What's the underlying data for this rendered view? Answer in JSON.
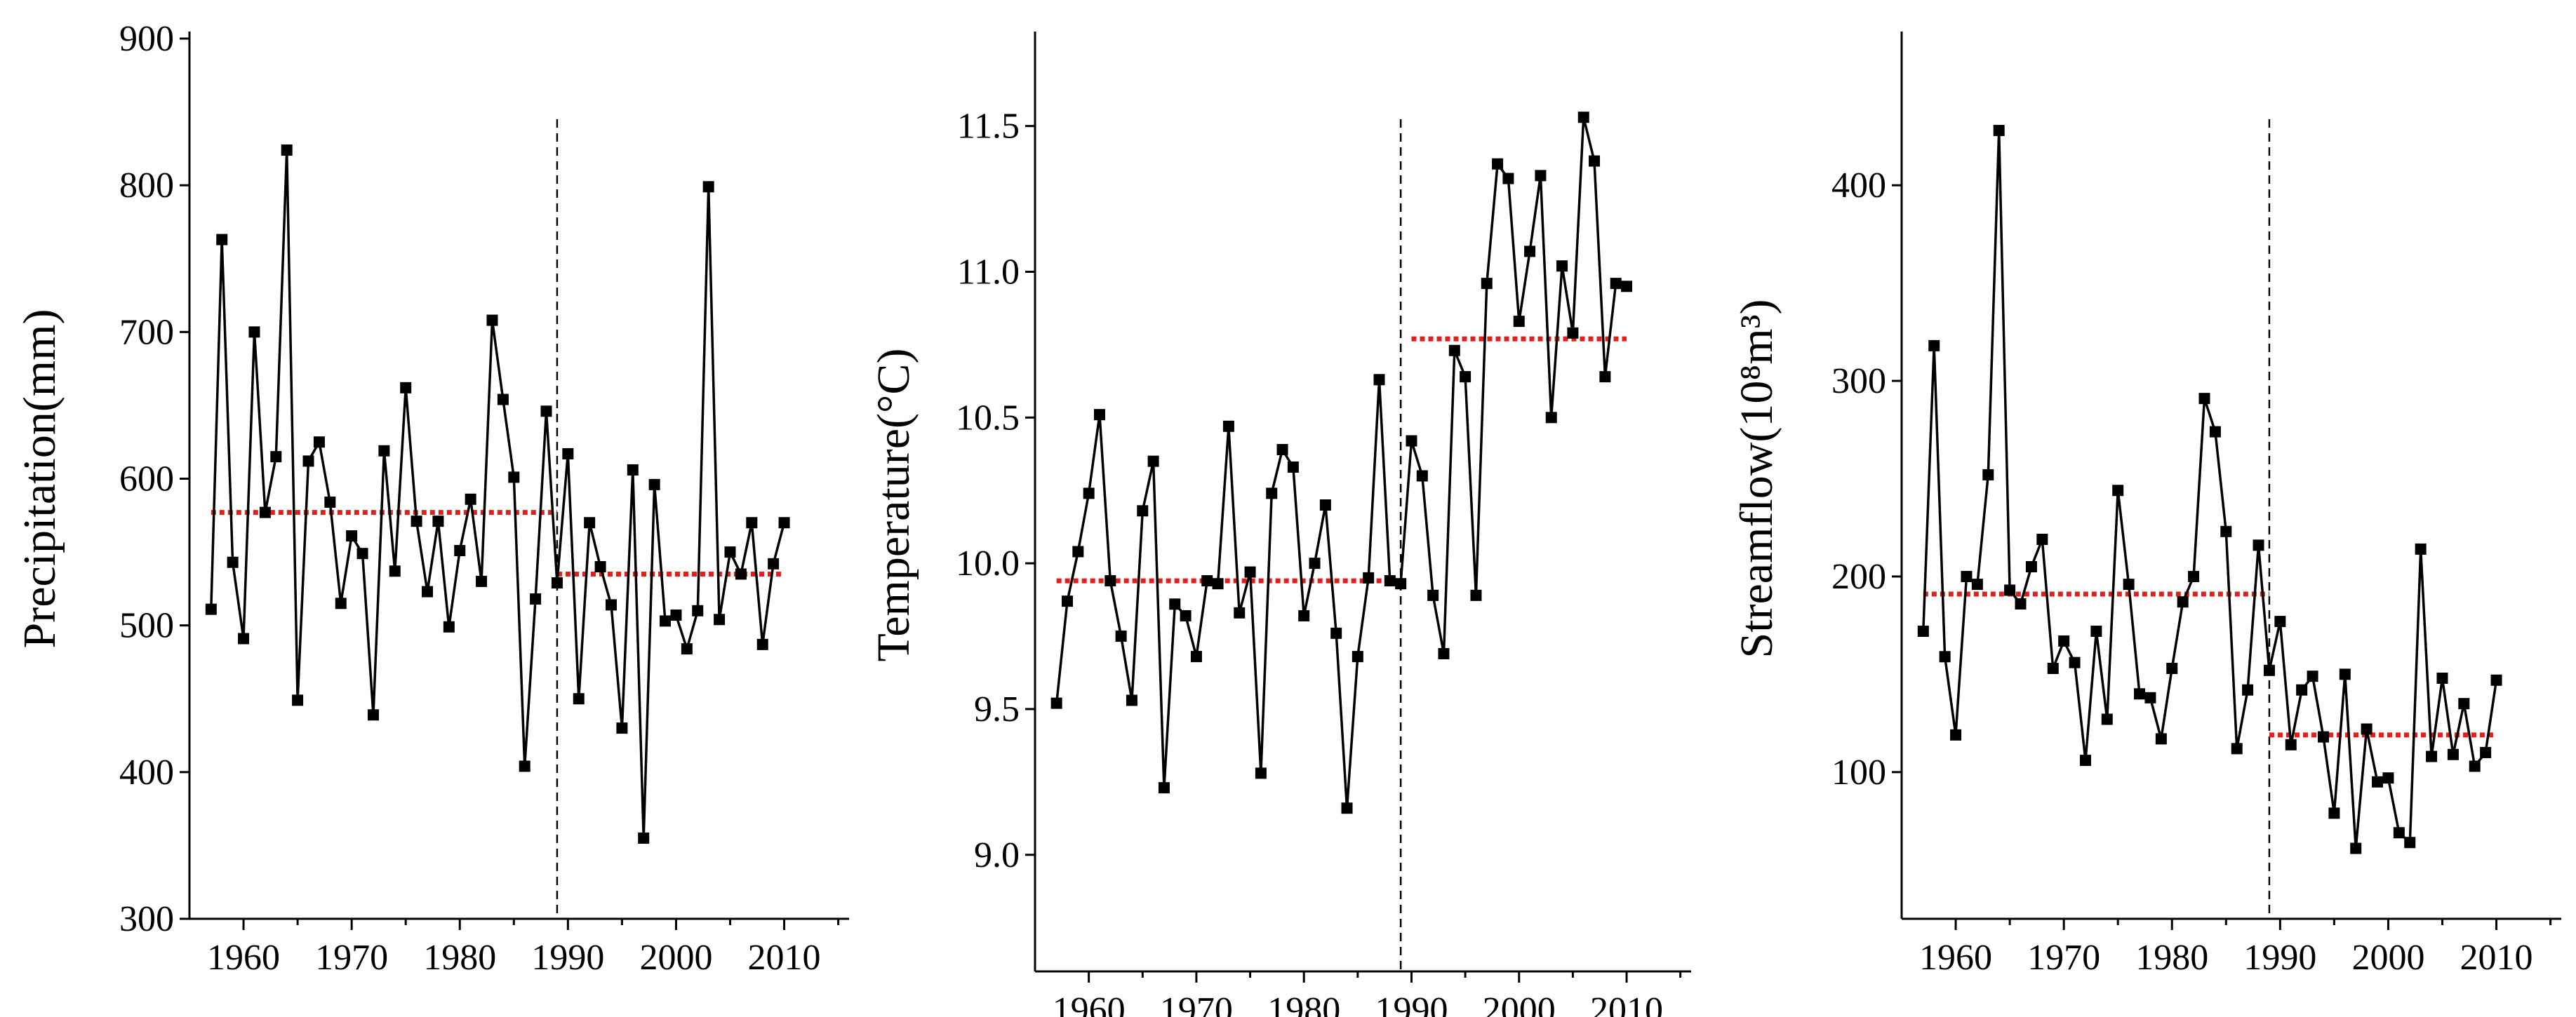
{
  "colors": {
    "line": "#000000",
    "mean": "#e0201a",
    "axis": "#000000"
  },
  "chart_data": [
    {
      "type": "line",
      "ylabel": "Precipitation(mm)",
      "xlim": [
        1955,
        2016
      ],
      "ylim": [
        300,
        900
      ],
      "xticks": [
        1960,
        1970,
        1980,
        1990,
        2000,
        2010
      ],
      "xtick_labels": [
        "1960",
        "1970",
        "1980",
        "1990",
        "2000",
        "2010"
      ],
      "yticks": [
        300,
        400,
        500,
        600,
        700,
        800,
        900
      ],
      "ytick_labels": [
        "300",
        "400",
        "500",
        "600",
        "700",
        "800",
        "900"
      ],
      "change_point": 1989,
      "means": [
        {
          "x0": 1957,
          "x1": 1989,
          "value": 577
        },
        {
          "x0": 1989,
          "x1": 2010,
          "value": 535
        }
      ],
      "series": [
        {
          "name": "Precipitation",
          "x": [
            1957,
            1958,
            1959,
            1960,
            1961,
            1962,
            1963,
            1964,
            1965,
            1966,
            1967,
            1968,
            1969,
            1970,
            1971,
            1972,
            1973,
            1974,
            1975,
            1976,
            1977,
            1978,
            1979,
            1980,
            1981,
            1982,
            1983,
            1984,
            1985,
            1986,
            1987,
            1988,
            1989,
            1990,
            1991,
            1992,
            1993,
            1994,
            1995,
            1996,
            1997,
            1998,
            1999,
            2000,
            2001,
            2002,
            2003,
            2004,
            2005,
            2006,
            2007,
            2008,
            2009,
            2010
          ],
          "values": [
            511,
            763,
            543,
            491,
            700,
            577,
            615,
            824,
            449,
            612,
            625,
            584,
            515,
            561,
            549,
            439,
            619,
            537,
            662,
            571,
            523,
            571,
            499,
            551,
            586,
            530,
            708,
            654,
            601,
            404,
            518,
            646,
            529,
            617,
            450,
            570,
            540,
            514,
            430,
            606,
            355,
            596,
            503,
            507,
            484,
            510,
            799,
            504,
            550,
            535,
            570,
            487,
            542,
            570
          ]
        }
      ]
    },
    {
      "type": "line",
      "ylabel": "Temperature(°C)",
      "xlim": [
        1955,
        2016
      ],
      "ylim": [
        8.6,
        11.8
      ],
      "xticks": [
        1960,
        1970,
        1980,
        1990,
        2000,
        2010
      ],
      "xtick_labels": [
        "1960",
        "1970",
        "1980",
        "1990",
        "2000",
        "2010"
      ],
      "yticks": [
        9.0,
        9.5,
        10.0,
        10.5,
        11.0,
        11.5
      ],
      "ytick_labels": [
        "9.0",
        "9.5",
        "10.0",
        "10.5",
        "11.0",
        "11.5"
      ],
      "change_point": 1989,
      "means": [
        {
          "x0": 1957,
          "x1": 1989,
          "value": 9.94
        },
        {
          "x0": 1990,
          "x1": 2010,
          "value": 10.77
        }
      ],
      "series": [
        {
          "name": "Temperature",
          "x": [
            1957,
            1958,
            1959,
            1960,
            1961,
            1962,
            1963,
            1964,
            1965,
            1966,
            1967,
            1968,
            1969,
            1970,
            1971,
            1972,
            1973,
            1974,
            1975,
            1976,
            1977,
            1978,
            1979,
            1980,
            1981,
            1982,
            1983,
            1984,
            1985,
            1986,
            1987,
            1988,
            1989,
            1990,
            1991,
            1992,
            1993,
            1994,
            1995,
            1996,
            1997,
            1998,
            1999,
            2000,
            2001,
            2002,
            2003,
            2004,
            2005,
            2006,
            2007,
            2008,
            2009,
            2010
          ],
          "values": [
            9.52,
            9.87,
            10.04,
            10.24,
            10.51,
            9.94,
            9.75,
            9.53,
            10.18,
            10.35,
            9.23,
            9.86,
            9.82,
            9.68,
            9.94,
            9.93,
            10.47,
            9.83,
            9.97,
            9.28,
            10.24,
            10.39,
            10.33,
            9.82,
            10.0,
            10.2,
            9.76,
            9.16,
            9.68,
            9.95,
            10.63,
            9.94,
            9.93,
            10.42,
            10.3,
            9.89,
            9.69,
            10.73,
            10.64,
            9.89,
            10.96,
            11.37,
            11.32,
            10.83,
            11.07,
            11.33,
            10.5,
            11.02,
            10.79,
            11.53,
            11.38,
            10.64,
            10.96,
            10.95
          ]
        }
      ]
    },
    {
      "type": "line",
      "ylabel": "Streamflow(10⁸m³)",
      "xlim": [
        1955,
        2016
      ],
      "ylim": [
        25,
        475
      ],
      "xticks": [
        1960,
        1970,
        1980,
        1990,
        2000,
        2010
      ],
      "xtick_labels": [
        "1960",
        "1970",
        "1980",
        "1990",
        "2000",
        "2010"
      ],
      "yticks": [
        100,
        200,
        300,
        400
      ],
      "ytick_labels": [
        "100",
        "200",
        "300",
        "400"
      ],
      "change_point": 1989,
      "means": [
        {
          "x0": 1957,
          "x1": 1989,
          "value": 191
        },
        {
          "x0": 1989,
          "x1": 2010,
          "value": 119
        }
      ],
      "series": [
        {
          "name": "Streamflow",
          "x": [
            1957,
            1958,
            1959,
            1960,
            1961,
            1962,
            1963,
            1964,
            1965,
            1966,
            1967,
            1968,
            1969,
            1970,
            1971,
            1972,
            1973,
            1974,
            1975,
            1976,
            1977,
            1978,
            1979,
            1980,
            1981,
            1982,
            1983,
            1984,
            1985,
            1986,
            1987,
            1988,
            1989,
            1990,
            1991,
            1992,
            1993,
            1994,
            1995,
            1996,
            1997,
            1998,
            1999,
            2000,
            2001,
            2002,
            2003,
            2004,
            2005,
            2006,
            2007,
            2008,
            2009,
            2010
          ],
          "values": [
            172,
            318,
            159,
            119,
            200,
            196,
            252,
            428,
            193,
            186,
            205,
            219,
            153,
            167,
            156,
            106,
            172,
            127,
            244,
            196,
            140,
            138,
            117,
            153,
            187,
            200,
            291,
            274,
            223,
            112,
            142,
            216,
            152,
            177,
            114,
            142,
            149,
            118,
            79,
            150,
            61,
            122,
            95,
            97,
            69,
            64,
            214,
            108,
            148,
            109,
            135,
            103,
            110,
            147
          ]
        }
      ]
    }
  ]
}
